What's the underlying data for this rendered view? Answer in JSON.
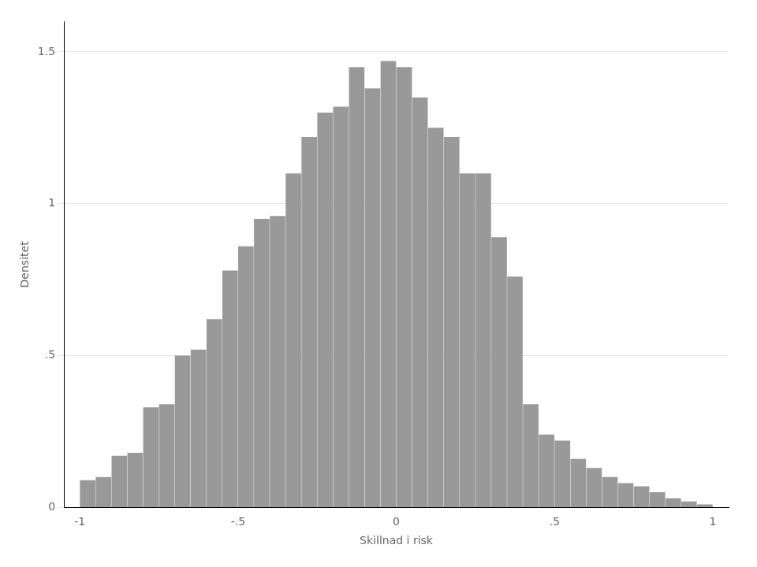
{
  "chart_data": {
    "type": "histogram",
    "xlabel": "Skillnad i risk",
    "ylabel": "Densitet",
    "bins": [
      -1,
      -0.95,
      -0.9,
      -0.85,
      -0.8,
      -0.75,
      -0.7,
      -0.65,
      -0.6,
      -0.55,
      -0.5,
      -0.45,
      -0.4,
      -0.35,
      -0.3,
      -0.25,
      -0.2,
      -0.15,
      -0.1,
      -0.05,
      0,
      0.05,
      0.1,
      0.15,
      0.2,
      0.25,
      0.3,
      0.35,
      0.4,
      0.45,
      0.5,
      0.55,
      0.6,
      0.65,
      0.7,
      0.75,
      0.8,
      0.85,
      0.9,
      0.95,
      1
    ],
    "values": [
      0.09,
      0.1,
      0.17,
      0.18,
      0.33,
      0.34,
      0.5,
      0.52,
      0.62,
      0.78,
      0.86,
      0.95,
      0.96,
      1.1,
      1.22,
      1.3,
      1.32,
      1.45,
      1.38,
      1.47,
      1.45,
      1.35,
      1.25,
      1.22,
      1.1,
      1.1,
      0.89,
      0.76,
      0.34,
      0.24,
      0.22,
      0.16,
      0.13,
      0.1,
      0.08,
      0.07,
      0.05,
      0.03,
      0.02,
      0.01
    ],
    "color": "#999999",
    "xlim": [
      -1.05,
      1.05
    ],
    "xticks": [
      -1,
      {
        "value": -0.5,
        "label": "-.5"
      },
      0,
      {
        "value": 0.5,
        "label": ".5"
      },
      1
    ],
    "ylim": [
      0,
      1.6
    ],
    "yticks": [
      0,
      {
        "value": 0.5,
        "label": ".5"
      },
      1,
      1.5
    ],
    "grid": "y"
  }
}
